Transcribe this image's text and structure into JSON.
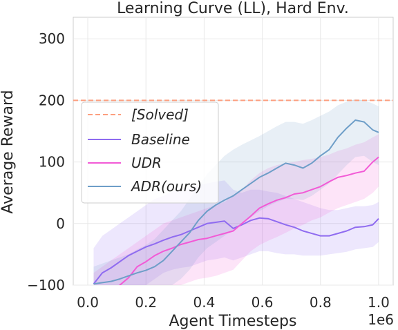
{
  "chart_data": {
    "type": "line",
    "title": "Learning Curve (LL), Hard Env.",
    "xlabel": "Agent Timesteps",
    "ylabel": "Average Reward",
    "x_offset_text": "1e6",
    "xlim": [
      -0.05,
      1.05
    ],
    "ylim": [
      -100,
      335
    ],
    "x_ticks": [
      0.0,
      0.2,
      0.4,
      0.6,
      0.8,
      1.0
    ],
    "x_tick_labels": [
      "0.0",
      "0.2",
      "0.4",
      "0.6",
      "0.8",
      "1.0"
    ],
    "y_ticks": [
      -100,
      0,
      100,
      200,
      300
    ],
    "y_tick_labels": [
      "−100",
      "0",
      "100",
      "200",
      "300"
    ],
    "grid": true,
    "legend_position": "center-left",
    "reference_line": {
      "name": "[Solved]",
      "y": 200,
      "color": "#fc9f7f"
    },
    "series": [
      {
        "name": "Baseline",
        "color": "#8f6bf0",
        "x": [
          0.02,
          0.05,
          0.08,
          0.11,
          0.14,
          0.17,
          0.2,
          0.23,
          0.26,
          0.29,
          0.32,
          0.35,
          0.38,
          0.41,
          0.44,
          0.47,
          0.5,
          0.53,
          0.56,
          0.59,
          0.62,
          0.65,
          0.68,
          0.71,
          0.74,
          0.77,
          0.8,
          0.83,
          0.86,
          0.89,
          0.92,
          0.95,
          0.98,
          1.0
        ],
        "y": [
          -98,
          -80,
          -72,
          -62,
          -52,
          -45,
          -38,
          -33,
          -27,
          -22,
          -18,
          -12,
          -6,
          0,
          2,
          4,
          -8,
          -2,
          5,
          9,
          8,
          3,
          -2,
          -6,
          -12,
          -16,
          -20,
          -20,
          -16,
          -12,
          -6,
          -5,
          -2,
          8
        ],
        "lower": [
          -100,
          -100,
          -100,
          -100,
          -100,
          -100,
          -100,
          -90,
          -80,
          -75,
          -72,
          -70,
          -65,
          -60,
          -58,
          -55,
          -60,
          -55,
          -50,
          -45,
          -45,
          -48,
          -50,
          -50,
          -52,
          -52,
          -52,
          -50,
          -48,
          -46,
          -42,
          -40,
          -38,
          -30
        ],
        "upper": [
          -40,
          -20,
          -10,
          0,
          10,
          20,
          30,
          40,
          45,
          52,
          55,
          58,
          62,
          65,
          68,
          70,
          55,
          50,
          55,
          55,
          52,
          50,
          45,
          40,
          35,
          30,
          25,
          22,
          22,
          25,
          28,
          28,
          30,
          35
        ]
      },
      {
        "name": "UDR",
        "color": "#f25ad6",
        "x": [
          0.02,
          0.05,
          0.08,
          0.11,
          0.14,
          0.17,
          0.2,
          0.23,
          0.26,
          0.29,
          0.32,
          0.35,
          0.38,
          0.41,
          0.44,
          0.47,
          0.5,
          0.53,
          0.56,
          0.59,
          0.62,
          0.65,
          0.68,
          0.71,
          0.74,
          0.77,
          0.8,
          0.83,
          0.86,
          0.89,
          0.92,
          0.95,
          0.98,
          1.0
        ],
        "y": [
          -125,
          -118,
          -112,
          -100,
          -88,
          -70,
          -62,
          -52,
          -45,
          -40,
          -34,
          -30,
          -26,
          -24,
          -20,
          -16,
          -12,
          0,
          12,
          25,
          32,
          38,
          42,
          48,
          50,
          55,
          60,
          68,
          75,
          78,
          82,
          85,
          100,
          108
        ],
        "lower": [
          -160,
          -160,
          -155,
          -150,
          -140,
          -130,
          -125,
          -118,
          -110,
          -105,
          -100,
          -95,
          -90,
          -88,
          -85,
          -80,
          -75,
          -60,
          -45,
          -35,
          -28,
          -22,
          -15,
          -8,
          -2,
          5,
          10,
          18,
          25,
          30,
          35,
          40,
          50,
          60
        ],
        "upper": [
          -80,
          -70,
          -60,
          -50,
          -40,
          -30,
          -20,
          -10,
          0,
          5,
          10,
          15,
          20,
          25,
          30,
          35,
          45,
          55,
          70,
          82,
          90,
          95,
          98,
          100,
          103,
          105,
          108,
          112,
          118,
          122,
          128,
          132,
          140,
          145
        ]
      },
      {
        "name": "ADR(ours)",
        "color": "#6e9ec8",
        "x": [
          0.02,
          0.05,
          0.08,
          0.11,
          0.14,
          0.17,
          0.2,
          0.23,
          0.26,
          0.29,
          0.32,
          0.35,
          0.38,
          0.41,
          0.44,
          0.47,
          0.5,
          0.53,
          0.56,
          0.59,
          0.62,
          0.65,
          0.68,
          0.71,
          0.74,
          0.77,
          0.8,
          0.83,
          0.86,
          0.89,
          0.92,
          0.95,
          0.98,
          1.0
        ],
        "y": [
          -98,
          -96,
          -94,
          -90,
          -85,
          -80,
          -76,
          -70,
          -60,
          -45,
          -30,
          -15,
          5,
          20,
          30,
          38,
          45,
          55,
          65,
          75,
          82,
          90,
          98,
          95,
          90,
          98,
          110,
          120,
          140,
          155,
          168,
          165,
          152,
          148
        ],
        "lower": [
          -100,
          -100,
          -100,
          -100,
          -100,
          -100,
          -100,
          -100,
          -100,
          -100,
          -90,
          -75,
          -55,
          -40,
          -30,
          -20,
          -10,
          0,
          10,
          20,
          28,
          35,
          40,
          40,
          38,
          45,
          55,
          65,
          80,
          95,
          108,
          110,
          100,
          95
        ],
        "upper": [
          -70,
          -65,
          -60,
          -55,
          -50,
          -42,
          -35,
          -25,
          -10,
          5,
          20,
          40,
          60,
          80,
          95,
          110,
          120,
          128,
          135,
          142,
          150,
          158,
          165,
          165,
          162,
          168,
          175,
          182,
          192,
          198,
          202,
          200,
          195,
          190
        ]
      }
    ]
  }
}
